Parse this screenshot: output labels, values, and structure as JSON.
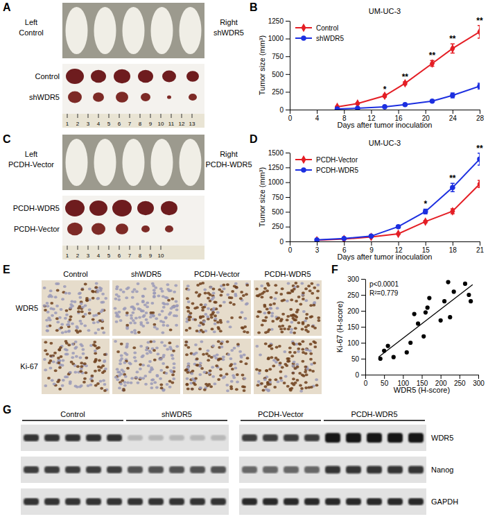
{
  "panel_labels": [
    "A",
    "B",
    "C",
    "D",
    "E",
    "F",
    "G"
  ],
  "photos": [
    {
      "left": [
        "Left",
        "Control"
      ],
      "right": [
        "Right",
        "shWDR5"
      ],
      "rows": [
        "Control",
        "shWDR5"
      ],
      "ruler": [
        1,
        2,
        3,
        4,
        5,
        6,
        7,
        8,
        9,
        10,
        11,
        12,
        13
      ]
    },
    {
      "left": [
        "Left",
        "PCDH-Vector"
      ],
      "right": [
        "Right",
        "PCDH-WDR5"
      ],
      "rows": [
        "PCDH-WDR5",
        "PCDH-Vector"
      ],
      "ruler": [
        1,
        2,
        3,
        4,
        5,
        6,
        7,
        8,
        9,
        10
      ]
    }
  ],
  "chart_data": [
    {
      "type": "line",
      "title": "UM-UC-3",
      "x": [
        7,
        10,
        14,
        17,
        21,
        24,
        28
      ],
      "xlim": [
        0,
        28
      ],
      "xticks": [
        0,
        4,
        8,
        12,
        16,
        20,
        24,
        28
      ],
      "ylim": [
        0,
        1250
      ],
      "yticks": [
        0,
        250,
        500,
        750,
        1000,
        1250
      ],
      "xlabel": "Days after tumor inoculation",
      "ylabel": "Tumor size (mm³)",
      "legend": "upper left",
      "series": [
        {
          "name": "Control",
          "color": "#e41e25",
          "marker": "diamond",
          "values": [
            40,
            85,
            195,
            370,
            650,
            860,
            1095
          ],
          "error": [
            8,
            12,
            18,
            22,
            40,
            65,
            90
          ]
        },
        {
          "name": "shWDR5",
          "color": "#1c2fe0",
          "marker": "circle",
          "values": [
            10,
            20,
            40,
            70,
            120,
            200,
            330
          ],
          "error": [
            4,
            5,
            8,
            10,
            15,
            35,
            40
          ]
        }
      ],
      "annotations": [
        {
          "x": 14,
          "text": "*"
        },
        {
          "x": 17,
          "text": "**"
        },
        {
          "x": 21,
          "text": "**"
        },
        {
          "x": 24,
          "text": "**"
        },
        {
          "x": 28,
          "text": "**"
        }
      ]
    },
    {
      "type": "line",
      "title": "UM-UC-3",
      "x": [
        3,
        6,
        9,
        12,
        15,
        18,
        21
      ],
      "xlim": [
        0,
        21
      ],
      "xticks": [
        0,
        3,
        6,
        9,
        12,
        15,
        18,
        21
      ],
      "ylim": [
        0,
        1500
      ],
      "yticks": [
        0,
        250,
        500,
        750,
        1000,
        1250,
        1500
      ],
      "xlabel": "Days after tumor inoculation",
      "ylabel": "Tumor size (mm³)",
      "legend": "upper left",
      "series": [
        {
          "name": "PCDH-Vector",
          "color": "#e41e25",
          "marker": "diamond",
          "values": [
            20,
            40,
            75,
            130,
            335,
            510,
            970
          ],
          "error": [
            4,
            6,
            8,
            12,
            20,
            40,
            60
          ]
        },
        {
          "name": "PCDH-WDR5",
          "color": "#1c2fe0",
          "marker": "circle",
          "values": [
            25,
            50,
            90,
            250,
            505,
            910,
            1390
          ],
          "error": [
            5,
            8,
            10,
            18,
            40,
            70,
            100
          ]
        }
      ],
      "annotations": [
        {
          "x": 15,
          "text": "*"
        },
        {
          "x": 18,
          "text": "**"
        },
        {
          "x": 21,
          "text": "**"
        }
      ]
    },
    {
      "type": "scatter",
      "x": [
        40,
        50,
        60,
        75,
        110,
        120,
        130,
        140,
        155,
        160,
        165,
        170,
        200,
        210,
        220,
        225,
        235,
        265,
        275,
        280
      ],
      "series": [
        {
          "color": "#000000",
          "marker": "circle",
          "values": [
            50,
            75,
            90,
            55,
            70,
            100,
            190,
            160,
            120,
            195,
            210,
            240,
            170,
            230,
            290,
            180,
            260,
            285,
            250,
            230
          ]
        }
      ],
      "fit": {
        "x": [
          35,
          285
        ],
        "values": [
          55,
          282
        ]
      },
      "xlim": [
        0,
        300
      ],
      "xticks": [
        0,
        50,
        100,
        150,
        200,
        250,
        300
      ],
      "ylim": [
        0,
        300
      ],
      "yticks": [
        0,
        50,
        100,
        150,
        200,
        250,
        300
      ],
      "xlabel": "WDR5 (H-score)",
      "ylabel": "Ki-67 (H-score)",
      "annotations": [
        "p<0.0001",
        "R²=0.779"
      ]
    }
  ],
  "ihc": {
    "columns": [
      "Control",
      "shWDR5",
      "PCDH-Vector",
      "PCDH-WDR5"
    ],
    "rows": [
      "WDR5",
      "Ki-67"
    ]
  },
  "blot": {
    "groups": [
      "Control",
      "shWDR5",
      "PCDH-Vector",
      "PCDH-WDR5"
    ],
    "rows": [
      "WDR5",
      "Nanog",
      "GAPDH"
    ]
  }
}
